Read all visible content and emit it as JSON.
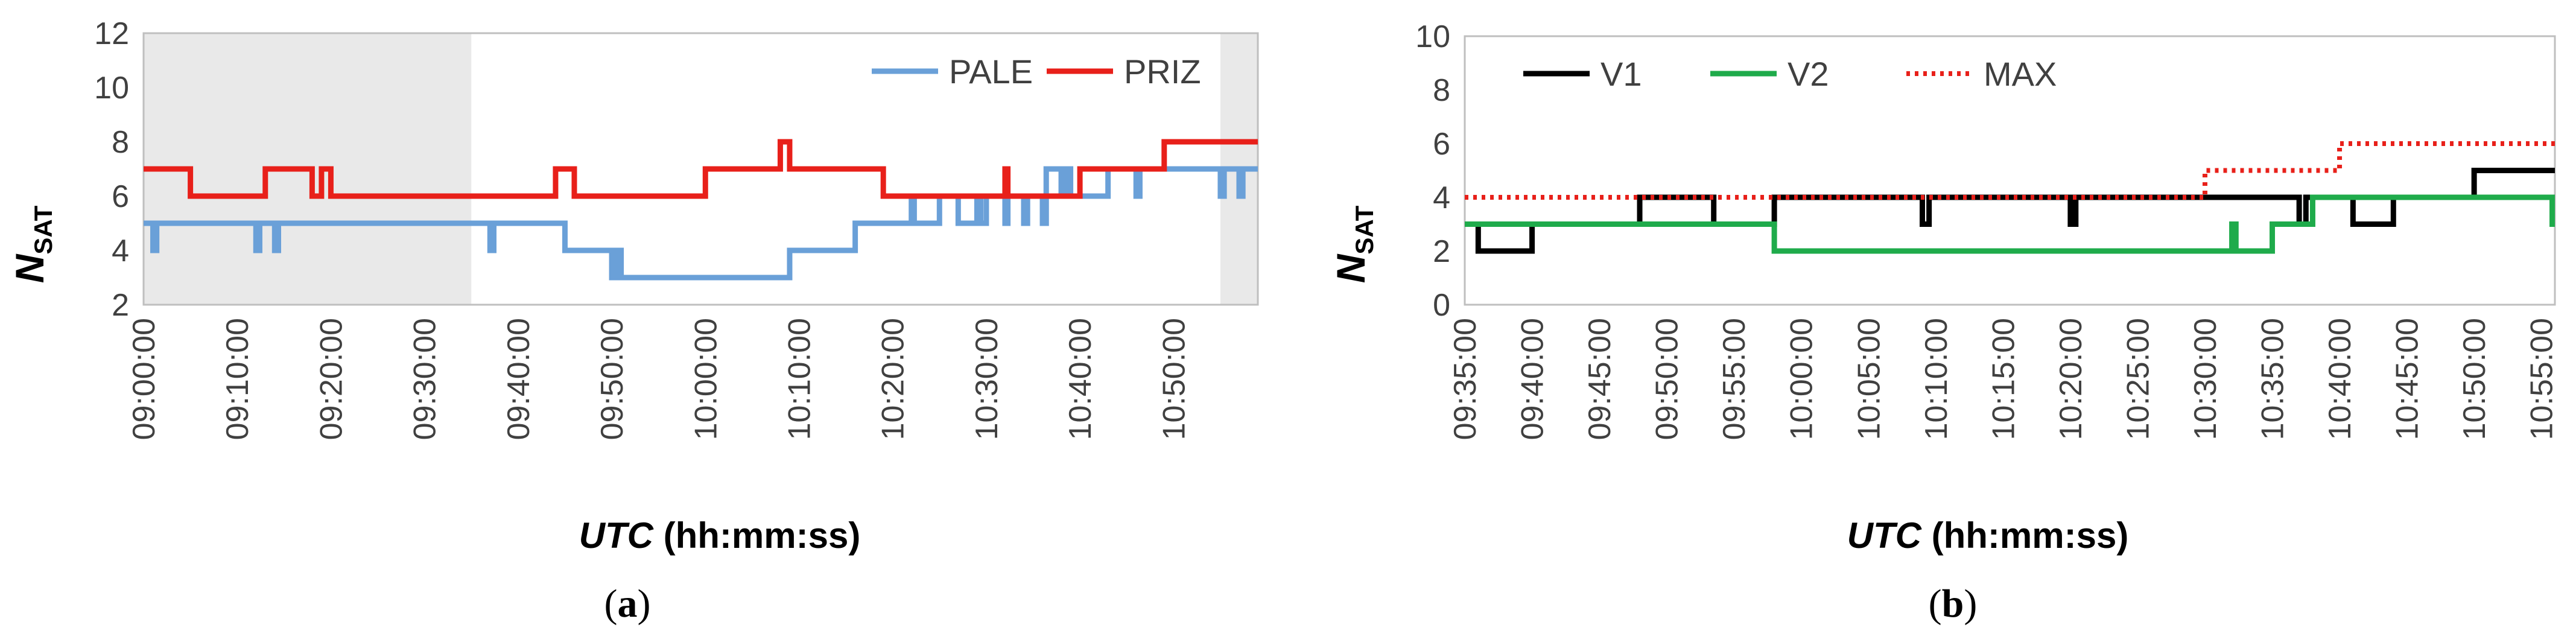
{
  "chart_data": [
    {
      "panel": "a",
      "type": "line",
      "step": true,
      "caption_open": "(",
      "caption_letter": "a",
      "caption_close": ")",
      "ylabel_main": "N",
      "ylabel_sub": "SAT",
      "xlabel_italic": "UTC",
      "xlabel_rest": " (hh:mm:ss)",
      "ylim": [
        2,
        12
      ],
      "yticks": [
        "2",
        "4",
        "6",
        "8",
        "10",
        "12"
      ],
      "xlim_minutes": [
        540,
        659
      ],
      "xticks": [
        "09:00:00",
        "09:10:00",
        "09:20:00",
        "09:30:00",
        "09:40:00",
        "09:50:00",
        "10:00:00",
        "10:10:00",
        "10:20:00",
        "10:30:00",
        "10:40:00",
        "10:50:00"
      ],
      "xtick_minutes": [
        540,
        550,
        560,
        570,
        580,
        590,
        600,
        610,
        620,
        630,
        640,
        650
      ],
      "grid": false,
      "legend_position": "top-right",
      "shaded_ranges_minutes": [
        [
          540,
          575
        ],
        [
          655,
          659
        ]
      ],
      "series": [
        {
          "name": "PALE",
          "color": "#6aa0d8",
          "x_minutes": [
            540,
            541,
            541.4,
            552,
            552.4,
            554,
            554.4,
            575,
            577,
            577.4,
            585,
            590,
            590.5,
            591,
            609,
            616,
            622,
            622.3,
            625,
            627,
            629,
            629.4,
            630,
            632,
            632.3,
            634,
            634.4,
            636,
            636.4,
            638,
            638.5,
            639,
            643,
            646,
            646.4,
            655,
            655.4,
            657,
            657.4,
            659
          ],
          "y": [
            5,
            4,
            5,
            4,
            5,
            4,
            5,
            5,
            4,
            5,
            4,
            3,
            4,
            3,
            4,
            5,
            6,
            5,
            6,
            5,
            6,
            5,
            6,
            5,
            6,
            5,
            6,
            5,
            7,
            6,
            7,
            6,
            7,
            6,
            7,
            6,
            7,
            6,
            7,
            7
          ]
        },
        {
          "name": "PRIZ",
          "color": "#e8201a",
          "x_minutes": [
            540,
            545,
            553,
            558,
            559,
            560,
            564,
            584,
            584.5,
            586,
            600,
            608,
            609,
            619,
            632,
            632.3,
            634,
            640,
            649,
            659
          ],
          "y": [
            7,
            6,
            7,
            6,
            7,
            6,
            6,
            7,
            7,
            6,
            7,
            8,
            7,
            6,
            7,
            6,
            6,
            7,
            8,
            8
          ]
        }
      ]
    },
    {
      "panel": "b",
      "type": "line",
      "step": true,
      "caption_open": "(",
      "caption_letter": "b",
      "caption_close": ")",
      "ylabel_main": "N",
      "ylabel_sub": "SAT",
      "xlabel_italic": "UTC",
      "xlabel_rest": " (hh:mm:ss)",
      "ylim": [
        0,
        10
      ],
      "yticks": [
        "0",
        "2",
        "4",
        "6",
        "8",
        "10"
      ],
      "xlim_minutes": [
        575,
        656
      ],
      "xticks": [
        "09:35:00",
        "09:40:00",
        "09:45:00",
        "09:50:00",
        "09:55:00",
        "10:00:00",
        "10:05:00",
        "10:10:00",
        "10:15:00",
        "10:20:00",
        "10:25:00",
        "10:30:00",
        "10:35:00",
        "10:40:00",
        "10:45:00",
        "10:50:00",
        "10:55:00"
      ],
      "xtick_minutes": [
        575,
        580,
        585,
        590,
        595,
        600,
        605,
        610,
        615,
        620,
        625,
        630,
        635,
        640,
        645,
        650,
        655
      ],
      "grid": false,
      "legend_position": "top-left",
      "series": [
        {
          "name": "V1",
          "color": "#000000",
          "style": "solid",
          "x_minutes": [
            575,
            576,
            580,
            580.5,
            581,
            588,
            593.5,
            598,
            609,
            609.5,
            610,
            620,
            620.4,
            637,
            637.5,
            638,
            641,
            644,
            650,
            656
          ],
          "y": [
            3,
            2,
            3,
            3,
            3,
            4,
            3,
            4,
            3,
            4,
            4,
            3,
            4,
            3,
            4,
            4,
            3,
            4,
            5,
            5
          ]
        },
        {
          "name": "V2",
          "color": "#1fab4b",
          "style": "solid",
          "x_minutes": [
            575,
            598,
            632,
            632.3,
            635,
            638,
            655.8,
            656
          ],
          "y": [
            3,
            2,
            3,
            2,
            3,
            4,
            3,
            3
          ]
        },
        {
          "name": "MAX",
          "color": "#e8201a",
          "style": "dotted",
          "x_minutes": [
            575,
            630,
            640,
            656
          ],
          "y": [
            4,
            5,
            6,
            6
          ]
        }
      ]
    }
  ]
}
